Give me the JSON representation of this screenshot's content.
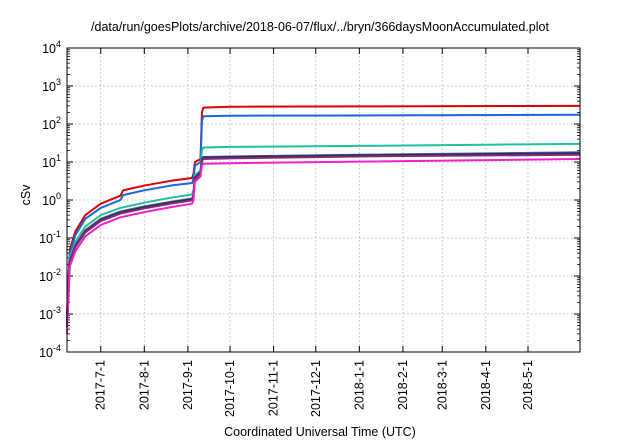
{
  "title": "/data/run/goesPlots/archive/2018-06-07/flux/../bryn/366daysMoonAccumulated.plot",
  "chart_data": {
    "type": "line",
    "title": "/data/run/goesPlots/archive/2018-06-07/flux/../bryn/366daysMoonAccumulated.plot",
    "xlabel": "Coordinated Universal Time (UTC)",
    "ylabel": "cSv",
    "yscale": "log",
    "ylim": [
      0.0001,
      10000
    ],
    "xlim": [
      "2017-06-07",
      "2018-06-07"
    ],
    "grid": true,
    "y_ticks": [
      {
        "value": 0.0001,
        "label": "10",
        "exp": "-4"
      },
      {
        "value": 0.001,
        "label": "10",
        "exp": "-3"
      },
      {
        "value": 0.01,
        "label": "10",
        "exp": "-2"
      },
      {
        "value": 0.1,
        "label": "10",
        "exp": "-1"
      },
      {
        "value": 1,
        "label": "10",
        "exp": "0"
      },
      {
        "value": 10,
        "label": "10",
        "exp": "1"
      },
      {
        "value": 100,
        "label": "10",
        "exp": "2"
      },
      {
        "value": 1000,
        "label": "10",
        "exp": "3"
      },
      {
        "value": 10000,
        "label": "10",
        "exp": "4"
      }
    ],
    "x_ticks": [
      {
        "date": "2017-07-01",
        "label": "2017-7-1"
      },
      {
        "date": "2017-08-01",
        "label": "2017-8-1"
      },
      {
        "date": "2017-09-01",
        "label": "2017-9-1"
      },
      {
        "date": "2017-10-01",
        "label": "2017-10-1"
      },
      {
        "date": "2017-11-01",
        "label": "2017-11-1"
      },
      {
        "date": "2017-12-01",
        "label": "2017-12-1"
      },
      {
        "date": "2018-01-01",
        "label": "2018-1-1"
      },
      {
        "date": "2018-02-01",
        "label": "2018-2-1"
      },
      {
        "date": "2018-03-01",
        "label": "2018-3-1"
      },
      {
        "date": "2018-04-01",
        "label": "2018-4-1"
      },
      {
        "date": "2018-05-01",
        "label": "2018-5-1"
      }
    ],
    "series": [
      {
        "color": "#dd0000",
        "points": [
          [
            "2017-06-07",
            0.001
          ],
          [
            "2017-06-09",
            0.05
          ],
          [
            "2017-06-13",
            0.15
          ],
          [
            "2017-06-20",
            0.4
          ],
          [
            "2017-07-01",
            0.8
          ],
          [
            "2017-07-15",
            1.3
          ],
          [
            "2017-07-17",
            1.8
          ],
          [
            "2017-08-01",
            2.4
          ],
          [
            "2017-08-20",
            3.2
          ],
          [
            "2017-09-04",
            3.8
          ],
          [
            "2017-09-05",
            4.8
          ],
          [
            "2017-09-06",
            10
          ],
          [
            "2017-09-10",
            12
          ],
          [
            "2017-09-11",
            200
          ],
          [
            "2017-09-12",
            270
          ],
          [
            "2017-10-01",
            285
          ],
          [
            "2018-01-01",
            290
          ],
          [
            "2018-06-07",
            300
          ]
        ]
      },
      {
        "color": "#1a66d9",
        "points": [
          [
            "2017-06-07",
            0.0008
          ],
          [
            "2017-06-09",
            0.04
          ],
          [
            "2017-06-13",
            0.12
          ],
          [
            "2017-06-20",
            0.32
          ],
          [
            "2017-07-01",
            0.62
          ],
          [
            "2017-07-15",
            1.0
          ],
          [
            "2017-07-17",
            1.35
          ],
          [
            "2017-08-01",
            1.8
          ],
          [
            "2017-08-20",
            2.4
          ],
          [
            "2017-09-04",
            2.8
          ],
          [
            "2017-09-05",
            3.6
          ],
          [
            "2017-09-06",
            8
          ],
          [
            "2017-09-10",
            10
          ],
          [
            "2017-09-11",
            120
          ],
          [
            "2017-09-12",
            160
          ],
          [
            "2017-10-01",
            165
          ],
          [
            "2018-01-01",
            168
          ],
          [
            "2018-06-07",
            175
          ]
        ]
      },
      {
        "color": "#20c0a0",
        "points": [
          [
            "2017-06-07",
            0.0006
          ],
          [
            "2017-06-09",
            0.03
          ],
          [
            "2017-06-13",
            0.08
          ],
          [
            "2017-06-20",
            0.2
          ],
          [
            "2017-07-01",
            0.4
          ],
          [
            "2017-07-15",
            0.62
          ],
          [
            "2017-08-01",
            0.85
          ],
          [
            "2017-08-20",
            1.15
          ],
          [
            "2017-09-04",
            1.4
          ],
          [
            "2017-09-05",
            1.8
          ],
          [
            "2017-09-06",
            4.5
          ],
          [
            "2017-09-10",
            6
          ],
          [
            "2017-09-11",
            20
          ],
          [
            "2017-09-12",
            24
          ],
          [
            "2017-10-01",
            25
          ],
          [
            "2018-01-01",
            26.5
          ],
          [
            "2018-06-07",
            30
          ]
        ]
      },
      {
        "color": "#666666",
        "points": [
          [
            "2017-06-07",
            0.0005
          ],
          [
            "2017-06-09",
            0.025
          ],
          [
            "2017-06-13",
            0.065
          ],
          [
            "2017-06-20",
            0.16
          ],
          [
            "2017-07-01",
            0.32
          ],
          [
            "2017-07-15",
            0.5
          ],
          [
            "2017-08-01",
            0.68
          ],
          [
            "2017-08-20",
            0.9
          ],
          [
            "2017-09-04",
            1.1
          ],
          [
            "2017-09-05",
            1.35
          ],
          [
            "2017-09-06",
            4
          ],
          [
            "2017-09-10",
            5.5
          ],
          [
            "2017-09-11",
            12
          ],
          [
            "2017-09-12",
            13.5
          ],
          [
            "2017-10-01",
            14
          ],
          [
            "2018-01-01",
            15.5
          ],
          [
            "2018-06-07",
            18
          ]
        ]
      },
      {
        "color": "#1a2a8a",
        "points": [
          [
            "2017-06-07",
            0.0005
          ],
          [
            "2017-06-09",
            0.024
          ],
          [
            "2017-06-13",
            0.062
          ],
          [
            "2017-06-20",
            0.15
          ],
          [
            "2017-07-01",
            0.3
          ],
          [
            "2017-07-15",
            0.47
          ],
          [
            "2017-08-01",
            0.64
          ],
          [
            "2017-08-20",
            0.86
          ],
          [
            "2017-09-04",
            1.05
          ],
          [
            "2017-09-05",
            1.3
          ],
          [
            "2017-09-06",
            3.8
          ],
          [
            "2017-09-10",
            5.2
          ],
          [
            "2017-09-11",
            11.5
          ],
          [
            "2017-09-12",
            13
          ],
          [
            "2017-10-01",
            13.5
          ],
          [
            "2018-01-01",
            15
          ],
          [
            "2018-06-07",
            17
          ]
        ]
      },
      {
        "color": "#8a2a6a",
        "points": [
          [
            "2017-06-07",
            0.00045
          ],
          [
            "2017-06-09",
            0.022
          ],
          [
            "2017-06-13",
            0.058
          ],
          [
            "2017-06-20",
            0.14
          ],
          [
            "2017-07-01",
            0.28
          ],
          [
            "2017-07-15",
            0.44
          ],
          [
            "2017-08-01",
            0.6
          ],
          [
            "2017-08-20",
            0.8
          ],
          [
            "2017-09-04",
            0.98
          ],
          [
            "2017-09-05",
            1.2
          ],
          [
            "2017-09-06",
            3.5
          ],
          [
            "2017-09-10",
            4.8
          ],
          [
            "2017-09-11",
            10.5
          ],
          [
            "2017-09-12",
            12
          ],
          [
            "2017-10-01",
            12.5
          ],
          [
            "2018-01-01",
            14
          ],
          [
            "2018-06-07",
            15.5
          ]
        ]
      },
      {
        "color": "#ee22cc",
        "points": [
          [
            "2017-06-07",
            0.0003
          ],
          [
            "2017-06-09",
            0.018
          ],
          [
            "2017-06-13",
            0.045
          ],
          [
            "2017-06-20",
            0.11
          ],
          [
            "2017-07-01",
            0.22
          ],
          [
            "2017-07-15",
            0.35
          ],
          [
            "2017-08-01",
            0.48
          ],
          [
            "2017-08-20",
            0.65
          ],
          [
            "2017-09-04",
            0.8
          ],
          [
            "2017-09-05",
            1.0
          ],
          [
            "2017-09-06",
            3
          ],
          [
            "2017-09-10",
            4.2
          ],
          [
            "2017-09-11",
            8
          ],
          [
            "2017-09-12",
            9
          ],
          [
            "2017-10-01",
            9.3
          ],
          [
            "2018-01-01",
            10.2
          ],
          [
            "2018-06-07",
            12
          ]
        ]
      }
    ]
  }
}
